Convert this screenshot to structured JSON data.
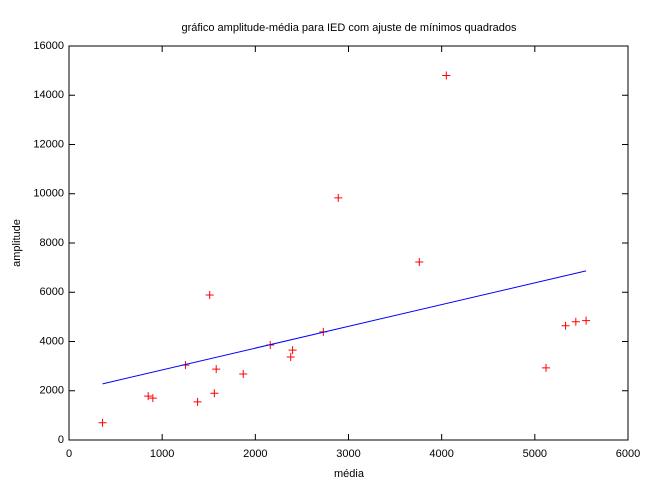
{
  "chart_data": {
    "type": "scatter",
    "title": "gráfico amplitude-média para IED com ajuste de mínimos quadrados",
    "xlabel": "média",
    "ylabel": "amplitude",
    "xlim": [
      0,
      6000
    ],
    "ylim": [
      0,
      16000
    ],
    "xticks": [
      0,
      1000,
      2000,
      3000,
      4000,
      5000,
      6000
    ],
    "yticks": [
      0,
      2000,
      4000,
      6000,
      8000,
      10000,
      12000,
      14000,
      16000
    ],
    "series": [
      {
        "color": "#ff0000",
        "mode": "points",
        "x": [
          360,
          850,
          900,
          1250,
          1380,
          1510,
          1580,
          1560,
          1870,
          2160,
          2400,
          2380,
          2730,
          2890,
          3760,
          4050,
          5120,
          5330,
          5440,
          5550
        ],
        "values": [
          700,
          1780,
          1700,
          3040,
          1550,
          5890,
          2880,
          1900,
          2680,
          3860,
          3650,
          3370,
          4390,
          9830,
          7230,
          14800,
          2930,
          4640,
          4800,
          4850
        ]
      },
      {
        "color": "#0000ff",
        "mode": "line",
        "x": [
          360,
          5550
        ],
        "values": [
          2280,
          6870
        ]
      }
    ]
  }
}
